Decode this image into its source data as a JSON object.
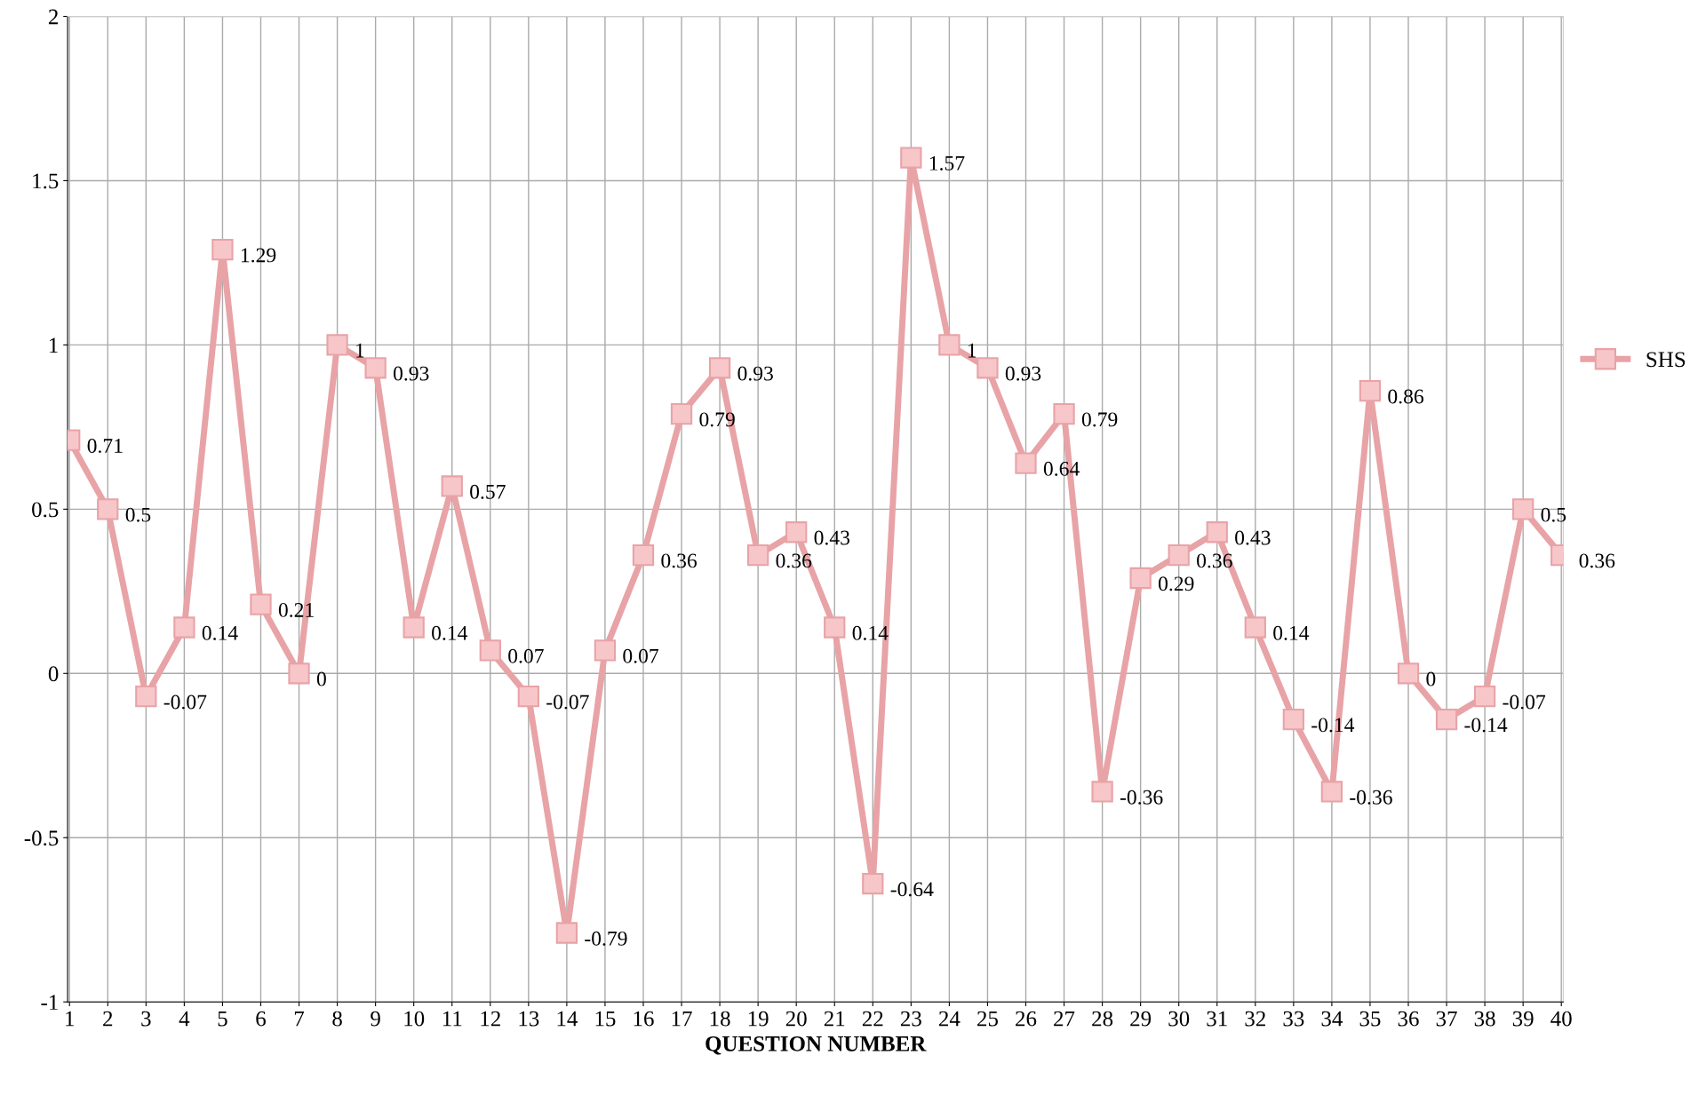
{
  "chart_data": {
    "type": "line",
    "xlabel": "QUESTION NUMBER",
    "categories": [
      "1",
      "2",
      "3",
      "4",
      "5",
      "6",
      "7",
      "8",
      "9",
      "10",
      "11",
      "12",
      "13",
      "14",
      "15",
      "16",
      "17",
      "18",
      "19",
      "20",
      "21",
      "22",
      "23",
      "24",
      "25",
      "26",
      "27",
      "28",
      "29",
      "30",
      "31",
      "32",
      "33",
      "34",
      "35",
      "36",
      "37",
      "38",
      "39",
      "40"
    ],
    "series": [
      {
        "name": "SHS",
        "color": "#e8a3a7",
        "values": [
          0.71,
          0.5,
          -0.07,
          0.14,
          1.29,
          0.21,
          0,
          1,
          0.93,
          0.14,
          0.57,
          0.07,
          -0.07,
          -0.79,
          0.07,
          0.36,
          0.79,
          0.93,
          0.36,
          0.43,
          0.14,
          -0.64,
          1.57,
          1,
          0.93,
          0.64,
          0.79,
          -0.36,
          0.29,
          0.36,
          0.43,
          0.14,
          -0.14,
          -0.36,
          0.86,
          0,
          -0.14,
          -0.07,
          0.5,
          0.36
        ]
      }
    ],
    "ylim": [
      -1,
      2
    ],
    "yticks": [
      -1,
      -0.5,
      0,
      0.5,
      1,
      1.5,
      2
    ],
    "grid": true,
    "legend": "right",
    "marker": "square",
    "line_style": "solid",
    "data_labels": true
  }
}
